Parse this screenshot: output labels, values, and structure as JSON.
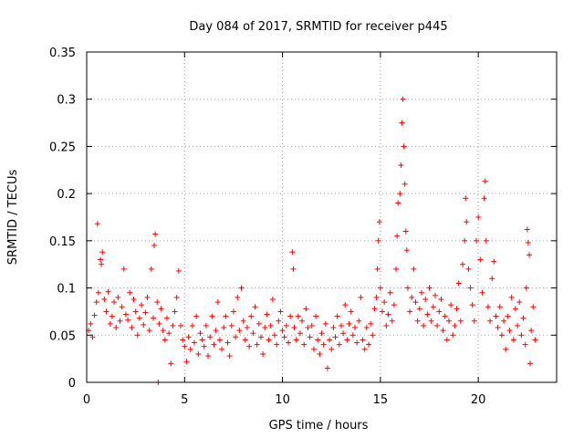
{
  "chart_data": {
    "type": "scatter",
    "title": "Day 084 of 2017, SRMTID for receiver p445",
    "xlabel": "GPS time / hours",
    "ylabel": "SRMTID / TECUs",
    "xlim": [
      0,
      24
    ],
    "ylim": [
      0,
      0.35
    ],
    "xticks": [
      0,
      5,
      10,
      15,
      20
    ],
    "yticks": [
      0,
      0.05,
      0.1,
      0.15,
      0.2,
      0.25,
      0.3,
      0.35
    ],
    "grid": true,
    "marker": "+",
    "color": "#ff0000",
    "series": [
      {
        "name": "SRMTID p445",
        "points": [
          [
            0.1,
            0.055
          ],
          [
            0.2,
            0.062
          ],
          [
            0.3,
            0.048
          ],
          [
            0.4,
            0.071
          ],
          [
            0.5,
            0.085
          ],
          [
            0.55,
            0.168
          ],
          [
            0.6,
            0.095
          ],
          [
            0.7,
            0.13
          ],
          [
            0.75,
            0.125
          ],
          [
            0.8,
            0.138
          ],
          [
            0.9,
            0.088
          ],
          [
            1.0,
            0.075
          ],
          [
            1.1,
            0.096
          ],
          [
            1.2,
            0.062
          ],
          [
            1.3,
            0.07
          ],
          [
            1.4,
            0.085
          ],
          [
            1.5,
            0.058
          ],
          [
            1.6,
            0.09
          ],
          [
            1.7,
            0.065
          ],
          [
            1.8,
            0.08
          ],
          [
            1.9,
            0.12
          ],
          [
            2.0,
            0.072
          ],
          [
            2.1,
            0.066
          ],
          [
            2.2,
            0.095
          ],
          [
            2.3,
            0.058
          ],
          [
            2.4,
            0.088
          ],
          [
            2.5,
            0.075
          ],
          [
            2.6,
            0.05
          ],
          [
            2.7,
            0.068
          ],
          [
            2.8,
            0.082
          ],
          [
            2.9,
            0.061
          ],
          [
            3.0,
            0.074
          ],
          [
            3.1,
            0.09
          ],
          [
            3.2,
            0.055
          ],
          [
            3.3,
            0.12
          ],
          [
            3.4,
            0.068
          ],
          [
            3.45,
            0.145
          ],
          [
            3.5,
            0.157
          ],
          [
            3.6,
            0.085
          ],
          [
            3.65,
            0.0
          ],
          [
            3.7,
            0.062
          ],
          [
            3.8,
            0.078
          ],
          [
            3.9,
            0.055
          ],
          [
            4.0,
            0.045
          ],
          [
            4.1,
            0.068
          ],
          [
            4.2,
            0.052
          ],
          [
            4.3,
            0.02
          ],
          [
            4.4,
            0.06
          ],
          [
            4.5,
            0.075
          ],
          [
            4.6,
            0.09
          ],
          [
            4.7,
            0.118
          ],
          [
            4.8,
            0.06
          ],
          [
            4.9,
            0.045
          ],
          [
            5.0,
            0.038
          ],
          [
            5.1,
            0.022
          ],
          [
            5.2,
            0.048
          ],
          [
            5.3,
            0.035
          ],
          [
            5.4,
            0.06
          ],
          [
            5.5,
            0.042
          ],
          [
            5.6,
            0.07
          ],
          [
            5.7,
            0.03
          ],
          [
            5.8,
            0.052
          ],
          [
            5.9,
            0.045
          ],
          [
            6.0,
            0.038
          ],
          [
            6.1,
            0.06
          ],
          [
            6.2,
            0.028
          ],
          [
            6.3,
            0.048
          ],
          [
            6.4,
            0.07
          ],
          [
            6.5,
            0.04
          ],
          [
            6.6,
            0.055
          ],
          [
            6.7,
            0.085
          ],
          [
            6.8,
            0.045
          ],
          [
            6.9,
            0.035
          ],
          [
            7.0,
            0.058
          ],
          [
            7.1,
            0.07
          ],
          [
            7.2,
            0.042
          ],
          [
            7.3,
            0.028
          ],
          [
            7.4,
            0.06
          ],
          [
            7.5,
            0.075
          ],
          [
            7.6,
            0.048
          ],
          [
            7.7,
            0.09
          ],
          [
            7.8,
            0.055
          ],
          [
            7.9,
            0.1
          ],
          [
            8.0,
            0.065
          ],
          [
            8.1,
            0.045
          ],
          [
            8.2,
            0.058
          ],
          [
            8.3,
            0.038
          ],
          [
            8.4,
            0.07
          ],
          [
            8.5,
            0.052
          ],
          [
            8.6,
            0.08
          ],
          [
            8.7,
            0.04
          ],
          [
            8.8,
            0.062
          ],
          [
            8.9,
            0.048
          ],
          [
            9.0,
            0.03
          ],
          [
            9.1,
            0.058
          ],
          [
            9.2,
            0.072
          ],
          [
            9.3,
            0.045
          ],
          [
            9.4,
            0.06
          ],
          [
            9.5,
            0.088
          ],
          [
            9.6,
            0.05
          ],
          [
            9.7,
            0.04
          ],
          [
            9.8,
            0.065
          ],
          [
            9.9,
            0.075
          ],
          [
            10.0,
            0.055
          ],
          [
            10.1,
            0.048
          ],
          [
            10.2,
            0.06
          ],
          [
            10.3,
            0.042
          ],
          [
            10.4,
            0.07
          ],
          [
            10.5,
            0.138
          ],
          [
            10.55,
            0.12
          ],
          [
            10.6,
            0.058
          ],
          [
            10.7,
            0.045
          ],
          [
            10.8,
            0.07
          ],
          [
            10.9,
            0.052
          ],
          [
            11.0,
            0.065
          ],
          [
            11.1,
            0.04
          ],
          [
            11.2,
            0.078
          ],
          [
            11.3,
            0.058
          ],
          [
            11.4,
            0.048
          ],
          [
            11.5,
            0.06
          ],
          [
            11.6,
            0.035
          ],
          [
            11.7,
            0.07
          ],
          [
            11.8,
            0.045
          ],
          [
            11.9,
            0.03
          ],
          [
            12.0,
            0.052
          ],
          [
            12.1,
            0.04
          ],
          [
            12.2,
            0.062
          ],
          [
            12.3,
            0.015
          ],
          [
            12.4,
            0.045
          ],
          [
            12.5,
            0.035
          ],
          [
            12.6,
            0.058
          ],
          [
            12.7,
            0.048
          ],
          [
            12.8,
            0.07
          ],
          [
            12.9,
            0.04
          ],
          [
            13.0,
            0.06
          ],
          [
            13.1,
            0.052
          ],
          [
            13.2,
            0.082
          ],
          [
            13.3,
            0.045
          ],
          [
            13.4,
            0.062
          ],
          [
            13.5,
            0.075
          ],
          [
            13.6,
            0.05
          ],
          [
            13.7,
            0.058
          ],
          [
            13.8,
            0.042
          ],
          [
            13.9,
            0.065
          ],
          [
            14.0,
            0.09
          ],
          [
            14.1,
            0.045
          ],
          [
            14.2,
            0.035
          ],
          [
            14.3,
            0.058
          ],
          [
            14.4,
            0.04
          ],
          [
            14.5,
            0.062
          ],
          [
            14.6,
            0.05
          ],
          [
            14.7,
            0.078
          ],
          [
            14.8,
            0.09
          ],
          [
            14.85,
            0.12
          ],
          [
            14.9,
            0.15
          ],
          [
            14.95,
            0.17
          ],
          [
            15.0,
            0.1
          ],
          [
            15.1,
            0.075
          ],
          [
            15.2,
            0.085
          ],
          [
            15.3,
            0.06
          ],
          [
            15.4,
            0.072
          ],
          [
            15.5,
            0.095
          ],
          [
            15.6,
            0.065
          ],
          [
            15.7,
            0.082
          ],
          [
            15.8,
            0.12
          ],
          [
            15.85,
            0.155
          ],
          [
            15.9,
            0.19
          ],
          [
            16.0,
            0.2
          ],
          [
            16.05,
            0.23
          ],
          [
            16.1,
            0.275
          ],
          [
            16.15,
            0.3
          ],
          [
            16.2,
            0.25
          ],
          [
            16.25,
            0.21
          ],
          [
            16.3,
            0.16
          ],
          [
            16.35,
            0.14
          ],
          [
            16.4,
            0.1
          ],
          [
            16.5,
            0.075
          ],
          [
            16.6,
            0.09
          ],
          [
            16.7,
            0.12
          ],
          [
            16.8,
            0.085
          ],
          [
            16.9,
            0.065
          ],
          [
            17.0,
            0.078
          ],
          [
            17.1,
            0.095
          ],
          [
            17.2,
            0.06
          ],
          [
            17.3,
            0.088
          ],
          [
            17.4,
            0.072
          ],
          [
            17.5,
            0.1
          ],
          [
            17.6,
            0.065
          ],
          [
            17.7,
            0.08
          ],
          [
            17.8,
            0.092
          ],
          [
            17.9,
            0.06
          ],
          [
            18.0,
            0.075
          ],
          [
            18.1,
            0.088
          ],
          [
            18.2,
            0.055
          ],
          [
            18.3,
            0.07
          ],
          [
            18.4,
            0.045
          ],
          [
            18.5,
            0.065
          ],
          [
            18.6,
            0.082
          ],
          [
            18.7,
            0.05
          ],
          [
            18.8,
            0.06
          ],
          [
            18.9,
            0.078
          ],
          [
            19.0,
            0.105
          ],
          [
            19.1,
            0.065
          ],
          [
            19.2,
            0.125
          ],
          [
            19.3,
            0.15
          ],
          [
            19.35,
            0.195
          ],
          [
            19.4,
            0.17
          ],
          [
            19.5,
            0.12
          ],
          [
            19.6,
            0.1
          ],
          [
            19.7,
            0.082
          ],
          [
            19.8,
            0.065
          ],
          [
            19.9,
            0.15
          ],
          [
            20.0,
            0.175
          ],
          [
            20.1,
            0.13
          ],
          [
            20.2,
            0.095
          ],
          [
            20.3,
            0.195
          ],
          [
            20.35,
            0.213
          ],
          [
            20.4,
            0.15
          ],
          [
            20.5,
            0.08
          ],
          [
            20.6,
            0.065
          ],
          [
            20.7,
            0.11
          ],
          [
            20.8,
            0.128
          ],
          [
            20.9,
            0.07
          ],
          [
            21.0,
            0.058
          ],
          [
            21.1,
            0.08
          ],
          [
            21.2,
            0.05
          ],
          [
            21.3,
            0.065
          ],
          [
            21.4,
            0.035
          ],
          [
            21.5,
            0.07
          ],
          [
            21.6,
            0.055
          ],
          [
            21.7,
            0.09
          ],
          [
            21.8,
            0.045
          ],
          [
            21.9,
            0.078
          ],
          [
            22.0,
            0.06
          ],
          [
            22.1,
            0.085
          ],
          [
            22.2,
            0.05
          ],
          [
            22.3,
            0.068
          ],
          [
            22.4,
            0.04
          ],
          [
            22.45,
            0.1
          ],
          [
            22.5,
            0.162
          ],
          [
            22.55,
            0.148
          ],
          [
            22.6,
            0.135
          ],
          [
            22.65,
            0.02
          ],
          [
            22.7,
            0.055
          ],
          [
            22.8,
            0.08
          ],
          [
            22.9,
            0.045
          ]
        ]
      }
    ]
  }
}
